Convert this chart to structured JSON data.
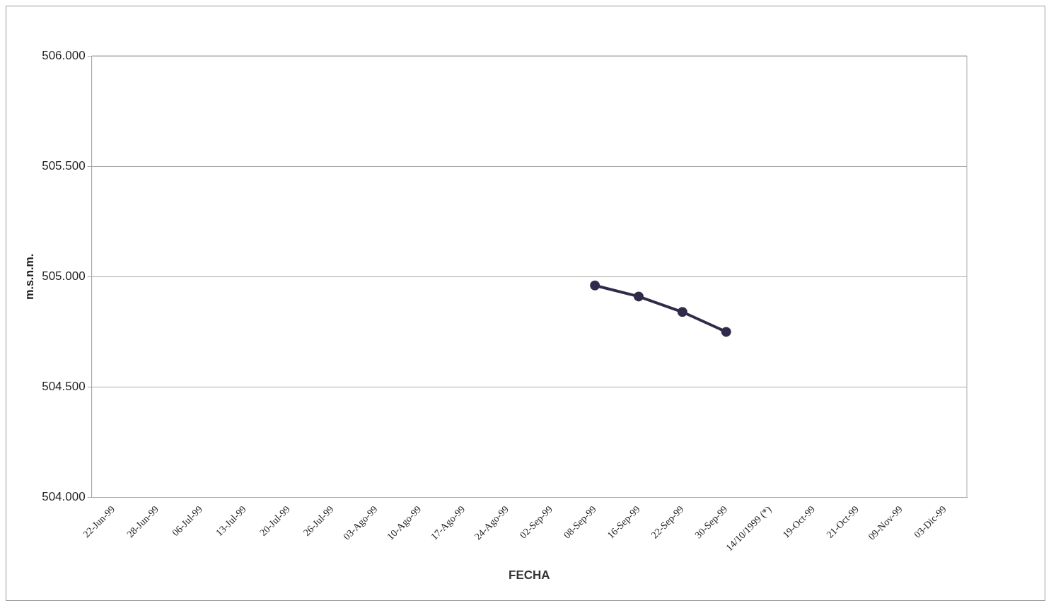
{
  "chart_data": {
    "type": "line",
    "xlabel": "FECHA",
    "ylabel": "m.s.n.m.",
    "categories": [
      "22-Jun-99",
      "28-Jun-99",
      "06-Jul-99",
      "13-Jul-99",
      "20-Jul-99",
      "26-Jul-99",
      "03-Ago-99",
      "10-Ago-99",
      "17-Ago-99",
      "24-Ago-99",
      "02-Sep-99",
      "08-Sep-99",
      "16-Sep-99",
      "22-Sep-99",
      "30-Sep-99",
      "14/10/1999 (*)",
      "19-Oct-99",
      "21-Oct-99",
      "09-Nov-99",
      "03-Dic-99"
    ],
    "series": [
      {
        "color": "#2f2b4a",
        "values": [
          null,
          null,
          null,
          null,
          null,
          null,
          null,
          null,
          null,
          null,
          null,
          504.96,
          504.91,
          504.84,
          504.75,
          null,
          null,
          null,
          null,
          null
        ]
      }
    ],
    "ylim": [
      504,
      506
    ],
    "yticks": [
      {
        "value": 504,
        "label": "504.000"
      },
      {
        "value": 504.5,
        "label": "504.500"
      },
      {
        "value": 505,
        "label": "505.000"
      },
      {
        "value": 505.5,
        "label": "505.500"
      },
      {
        "value": 506,
        "label": "506.000"
      }
    ],
    "grid": "y",
    "legend": false,
    "marker": "circle",
    "line_style": "solid"
  }
}
